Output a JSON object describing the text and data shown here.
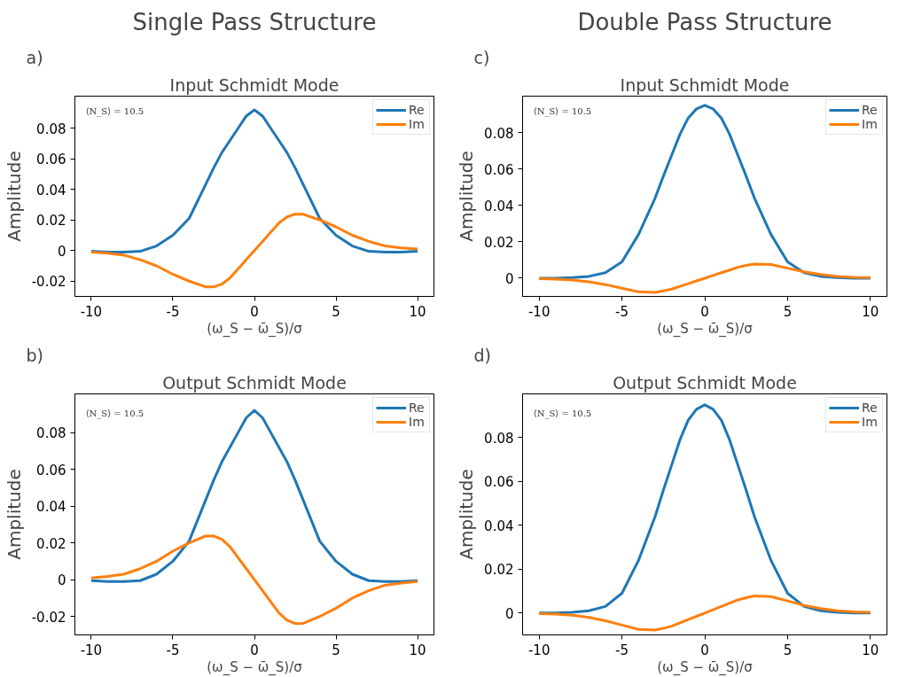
{
  "chart_data": [
    {
      "type": "line",
      "title": "Input Schmidt Mode",
      "xlabel": "(ω_S − ω̄_S)/σ",
      "ylabel": "Amplitude",
      "annotations": [
        "Single Pass Structure",
        "a)",
        "⟨N_S⟩ = 10.5"
      ],
      "legend": "top right",
      "grid": false,
      "xlim": [
        -11,
        11
      ],
      "ylim": [
        -0.03,
        0.101
      ],
      "xticks": [
        -10,
        -5,
        0,
        5,
        10
      ],
      "yticks": [
        -0.02,
        0,
        0.02,
        0.04,
        0.06,
        0.08
      ],
      "x": [
        -10,
        -9,
        -8,
        -7,
        -6,
        -5,
        -4,
        -3,
        -2.5,
        -2,
        -1.5,
        -1,
        -0.5,
        0,
        0.5,
        1,
        1.5,
        2,
        2.5,
        3,
        4,
        5,
        6,
        7,
        8,
        9,
        10
      ],
      "series": [
        {
          "name": "Re",
          "color": "#1f77b4",
          "values": [
            -0.0005,
            -0.001,
            -0.001,
            -0.0005,
            0.003,
            0.01,
            0.021,
            0.043,
            0.054,
            0.064,
            0.072,
            0.08,
            0.088,
            0.092,
            0.088,
            0.08,
            0.072,
            0.064,
            0.054,
            0.043,
            0.021,
            0.01,
            0.003,
            -0.0005,
            -0.001,
            -0.001,
            -0.0005
          ]
        },
        {
          "name": "Im",
          "color": "#ff7f0e",
          "values": [
            -0.001,
            -0.0018,
            -0.003,
            -0.006,
            -0.01,
            -0.0155,
            -0.02,
            -0.0237,
            -0.0238,
            -0.022,
            -0.018,
            -0.012,
            -0.006,
            0,
            0.006,
            0.012,
            0.018,
            0.022,
            0.0238,
            0.0237,
            0.02,
            0.0155,
            0.01,
            0.006,
            0.003,
            0.0018,
            0.001
          ]
        }
      ]
    },
    {
      "type": "line",
      "title": "Input Schmidt Mode",
      "xlabel": "(ω_S − ω̄_S)/σ",
      "ylabel": "Amplitude",
      "annotations": [
        "Double Pass Structure",
        "c)",
        "⟨N_S⟩ = 10.5"
      ],
      "legend": "top right",
      "grid": false,
      "xlim": [
        -11,
        11
      ],
      "ylim": [
        -0.01,
        0.1
      ],
      "xticks": [
        -10,
        -5,
        0,
        5,
        10
      ],
      "yticks": [
        0,
        0.02,
        0.04,
        0.06,
        0.08
      ],
      "x": [
        -10,
        -9,
        -8,
        -7,
        -6,
        -5,
        -4,
        -3,
        -2.5,
        -2,
        -1.5,
        -1,
        -0.5,
        0,
        0.5,
        1,
        1.5,
        2,
        2.5,
        3,
        4,
        5,
        6,
        7,
        8,
        9,
        10
      ],
      "series": [
        {
          "name": "Re",
          "color": "#1f77b4",
          "values": [
            0,
            0,
            0.0003,
            0.001,
            0.003,
            0.009,
            0.024,
            0.044,
            0.056,
            0.0675,
            0.079,
            0.088,
            0.093,
            0.095,
            0.093,
            0.088,
            0.079,
            0.0675,
            0.056,
            0.044,
            0.024,
            0.009,
            0.003,
            0.001,
            0.0003,
            0,
            0
          ]
        },
        {
          "name": "Im",
          "color": "#ff7f0e",
          "values": [
            -0.0003,
            -0.0005,
            -0.001,
            -0.002,
            -0.0035,
            -0.0055,
            -0.0075,
            -0.0078,
            -0.007,
            -0.006,
            -0.0045,
            -0.003,
            -0.0015,
            0,
            0.0015,
            0.003,
            0.0045,
            0.006,
            0.007,
            0.0078,
            0.0075,
            0.0055,
            0.0035,
            0.002,
            0.001,
            0.0005,
            0.0003
          ]
        }
      ]
    },
    {
      "type": "line",
      "title": "Output Schmidt Mode",
      "xlabel": "(ω_S − ω̄_S)/σ",
      "ylabel": "Amplitude",
      "annotations": [
        "b)",
        "⟨N_S⟩ = 10.5"
      ],
      "legend": "top right",
      "grid": false,
      "xlim": [
        -11,
        11
      ],
      "ylim": [
        -0.03,
        0.101
      ],
      "xticks": [
        -10,
        -5,
        0,
        5,
        10
      ],
      "yticks": [
        -0.02,
        0,
        0.02,
        0.04,
        0.06,
        0.08
      ],
      "x": [
        -10,
        -9,
        -8,
        -7,
        -6,
        -5,
        -4,
        -3,
        -2.5,
        -2,
        -1.5,
        -1,
        -0.5,
        0,
        0.5,
        1,
        1.5,
        2,
        2.5,
        3,
        4,
        5,
        6,
        7,
        8,
        9,
        10
      ],
      "series": [
        {
          "name": "Re",
          "color": "#1f77b4",
          "values": [
            -0.0005,
            -0.001,
            -0.001,
            -0.0005,
            0.003,
            0.01,
            0.021,
            0.043,
            0.054,
            0.064,
            0.072,
            0.08,
            0.088,
            0.092,
            0.088,
            0.08,
            0.072,
            0.064,
            0.054,
            0.043,
            0.021,
            0.01,
            0.003,
            -0.0005,
            -0.001,
            -0.001,
            -0.0005
          ]
        },
        {
          "name": "Im",
          "color": "#ff7f0e",
          "values": [
            0.001,
            0.0018,
            0.003,
            0.006,
            0.01,
            0.0155,
            0.02,
            0.0237,
            0.0238,
            0.022,
            0.018,
            0.012,
            0.006,
            0,
            -0.006,
            -0.012,
            -0.018,
            -0.022,
            -0.0238,
            -0.0237,
            -0.02,
            -0.0155,
            -0.01,
            -0.006,
            -0.003,
            -0.0018,
            -0.001
          ]
        }
      ]
    },
    {
      "type": "line",
      "title": "Output Schmidt Mode",
      "xlabel": "(ω_S − ω̄_S)/σ",
      "ylabel": "Amplitude",
      "annotations": [
        "d)",
        "⟨N_S⟩ = 10.5"
      ],
      "legend": "top right",
      "grid": false,
      "xlim": [
        -11,
        11
      ],
      "ylim": [
        -0.01,
        0.1
      ],
      "xticks": [
        -10,
        -5,
        0,
        5,
        10
      ],
      "yticks": [
        0,
        0.02,
        0.04,
        0.06,
        0.08
      ],
      "x": [
        -10,
        -9,
        -8,
        -7,
        -6,
        -5,
        -4,
        -3,
        -2.5,
        -2,
        -1.5,
        -1,
        -0.5,
        0,
        0.5,
        1,
        1.5,
        2,
        2.5,
        3,
        4,
        5,
        6,
        7,
        8,
        9,
        10
      ],
      "series": [
        {
          "name": "Re",
          "color": "#1f77b4",
          "values": [
            0,
            0,
            0.0003,
            0.001,
            0.003,
            0.009,
            0.024,
            0.044,
            0.056,
            0.0675,
            0.079,
            0.088,
            0.093,
            0.095,
            0.093,
            0.088,
            0.079,
            0.0675,
            0.056,
            0.044,
            0.024,
            0.009,
            0.003,
            0.001,
            0.0003,
            0,
            0
          ]
        },
        {
          "name": "Im",
          "color": "#ff7f0e",
          "values": [
            -0.0003,
            -0.0005,
            -0.001,
            -0.002,
            -0.0035,
            -0.0055,
            -0.0075,
            -0.0078,
            -0.007,
            -0.006,
            -0.0045,
            -0.003,
            -0.0015,
            0,
            0.0015,
            0.003,
            0.0045,
            0.006,
            0.007,
            0.0078,
            0.0075,
            0.0055,
            0.0035,
            0.002,
            0.001,
            0.0005,
            0.0003
          ]
        }
      ]
    }
  ]
}
